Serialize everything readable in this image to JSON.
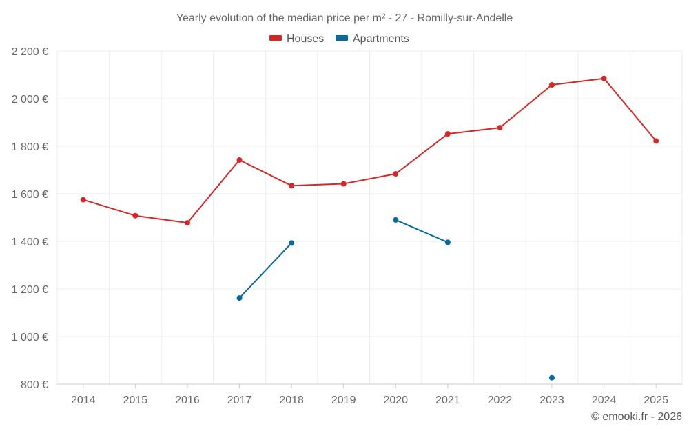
{
  "chart_data": {
    "type": "line",
    "title": "Yearly evolution of the median price per m² - 27 - Romilly-sur-Andelle",
    "xlabel": "",
    "ylabel": "",
    "categories": [
      "2014",
      "2015",
      "2016",
      "2017",
      "2018",
      "2019",
      "2020",
      "2021",
      "2022",
      "2023",
      "2024",
      "2025"
    ],
    "ylim": [
      800,
      2200
    ],
    "yticks": [
      800,
      1000,
      1200,
      1400,
      1600,
      1800,
      2000,
      2200
    ],
    "ytick_labels": [
      "800 €",
      "1 000 €",
      "1 200 €",
      "1 400 €",
      "1 600 €",
      "1 800 €",
      "2 000 €",
      "2 200 €"
    ],
    "grid": true,
    "legend_position": "top-center",
    "series": [
      {
        "name": "Houses",
        "color": "#d62728",
        "values": [
          1575,
          1508,
          1478,
          1742,
          1634,
          1642,
          1684,
          1852,
          1878,
          2058,
          2085,
          1822
        ]
      },
      {
        "name": "Apartments",
        "color": "#08689a",
        "values": [
          null,
          null,
          null,
          1162,
          1393,
          null,
          1490,
          1396,
          null,
          827,
          null,
          null
        ]
      }
    ]
  },
  "footer": {
    "copyright": "© emooki.fr - 2026"
  }
}
